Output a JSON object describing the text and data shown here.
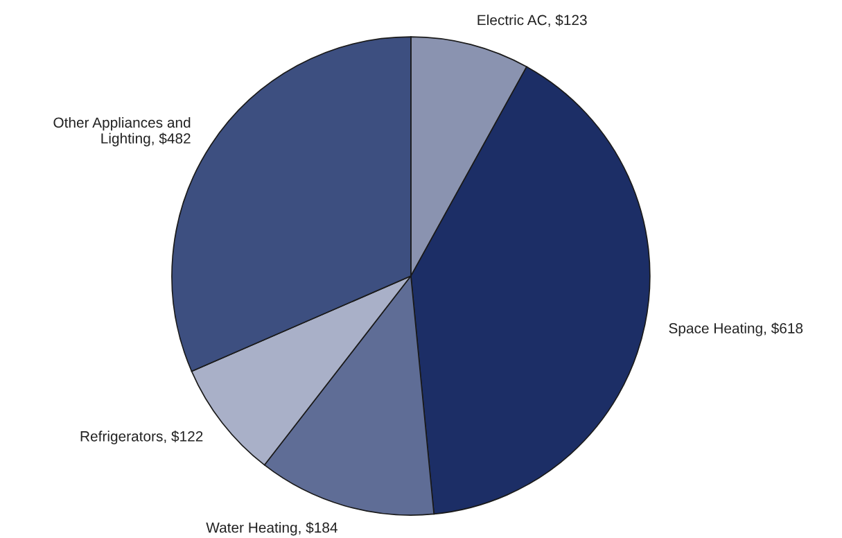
{
  "chart_data": {
    "type": "pie",
    "categories": [
      "Electric AC, $123",
      "Space Heating, $618",
      "Water Heating, $184",
      "Refrigerators, $122",
      "Other Appliances and\nLighting, $482"
    ],
    "values": [
      123,
      618,
      184,
      122,
      482
    ],
    "colors": [
      "#8a93b0",
      "#1c2e66",
      "#5f6d96",
      "#a9b0c8",
      "#3d4f80"
    ]
  }
}
